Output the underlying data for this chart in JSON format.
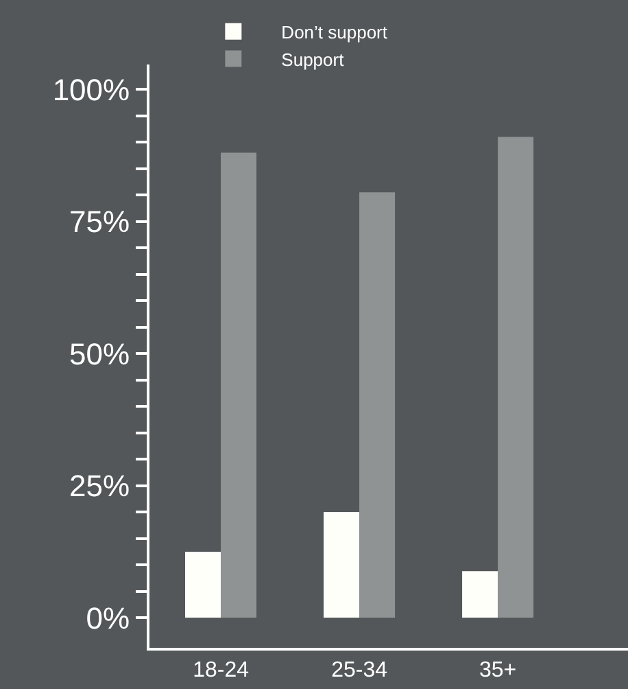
{
  "chart_data": {
    "type": "bar",
    "categories": [
      "18-24",
      "25-34",
      "35+"
    ],
    "series": [
      {
        "name": "Don’t support",
        "color": "#fffffa",
        "values": [
          12.5,
          20,
          8.8
        ]
      },
      {
        "name": "Support",
        "color": "#8f9394",
        "values": [
          88,
          80.5,
          91
        ]
      }
    ],
    "ylim": [
      -5.7,
      104.7
    ],
    "yticks": [
      {
        "value": 0,
        "label": "0%"
      },
      {
        "value": 5,
        "label": null
      },
      {
        "value": 10,
        "label": null
      },
      {
        "value": 15,
        "label": null
      },
      {
        "value": 20,
        "label": null
      },
      {
        "value": 25,
        "label": "25%"
      },
      {
        "value": 30,
        "label": null
      },
      {
        "value": 35,
        "label": null
      },
      {
        "value": 40,
        "label": null
      },
      {
        "value": 45,
        "label": null
      },
      {
        "value": 50,
        "label": "50%"
      },
      {
        "value": 55,
        "label": null
      },
      {
        "value": 60,
        "label": null
      },
      {
        "value": 65,
        "label": null
      },
      {
        "value": 70,
        "label": null
      },
      {
        "value": 75,
        "label": "75%"
      },
      {
        "value": 80,
        "label": null
      },
      {
        "value": 85,
        "label": null
      },
      {
        "value": 90,
        "label": null
      },
      {
        "value": 95,
        "label": null
      },
      {
        "value": 100,
        "label": "100%"
      }
    ],
    "legend": "top"
  }
}
